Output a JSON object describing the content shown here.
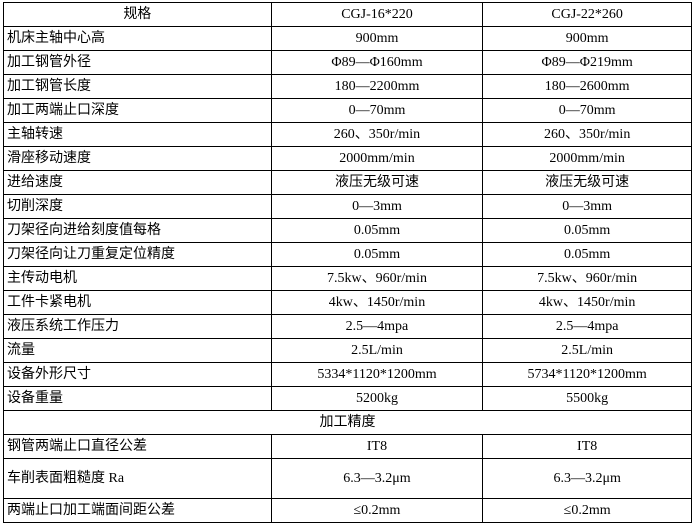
{
  "header": {
    "label": "规格",
    "model_a": "CGJ-16*220",
    "model_b": "CGJ-22*260"
  },
  "rows": [
    {
      "label": "机床主轴中心高",
      "a": "900mm",
      "b": "900mm"
    },
    {
      "label": "加工钢管外径",
      "a": "Φ89—Φ160mm",
      "b": "Φ89—Φ219mm"
    },
    {
      "label": "加工钢管长度",
      "a": "180—2200mm",
      "b": "180—2600mm"
    },
    {
      "label": "加工两端止口深度",
      "a": "0—70mm",
      "b": "0—70mm"
    },
    {
      "label": "主轴转速",
      "a": "260、350r/min",
      "b": "260、350r/min"
    },
    {
      "label": "滑座移动速度",
      "a": "2000mm/min",
      "b": "2000mm/min"
    },
    {
      "label": "进给速度",
      "a": "液压无级可速",
      "b": "液压无级可速"
    },
    {
      "label": "切削深度",
      "a": "0—3mm",
      "b": "0—3mm"
    },
    {
      "label": "刀架径向进给刻度值每格",
      "a": "0.05mm",
      "b": "0.05mm"
    },
    {
      "label": "刀架径向让刀重复定位精度",
      "a": "0.05mm",
      "b": "0.05mm"
    },
    {
      "label": "主传动电机",
      "a": "7.5kw、960r/min",
      "b": "7.5kw、960r/min"
    },
    {
      "label": "工件卡紧电机",
      "a": "4kw、1450r/min",
      "b": "4kw、1450r/min"
    },
    {
      "label": "液压系统工作压力",
      "a": "2.5—4mpa",
      "b": "2.5—4mpa"
    },
    {
      "label": "流量",
      "a": "2.5L/min",
      "b": "2.5L/min"
    },
    {
      "label": "设备外形尺寸",
      "a": "5334*1120*1200mm",
      "b": "5734*1120*1200mm"
    },
    {
      "label": "设备重量",
      "a": "5200kg",
      "b": "5500kg"
    }
  ],
  "section": {
    "title": "加工精度"
  },
  "precision_rows": [
    {
      "label": "钢管两端止口直径公差",
      "a": "IT8",
      "b": "IT8"
    },
    {
      "label": "车削表面粗糙度 Ra",
      "a": "6.3—3.2μm",
      "b": "6.3—3.2μm"
    },
    {
      "label": "两端止口加工端面间距公差",
      "a": "≤0.2mm",
      "b": "≤0.2mm"
    }
  ]
}
